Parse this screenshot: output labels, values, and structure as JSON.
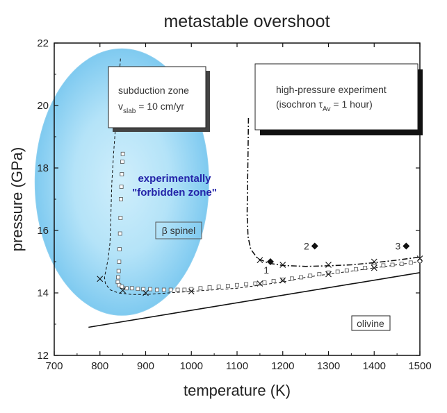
{
  "chart_data": {
    "type": "scatter",
    "title": "metastable overshoot",
    "xlabel": "temperature (K)",
    "ylabel": "pressure (GPa)",
    "xlim": [
      700,
      1500
    ],
    "ylim": [
      12,
      22
    ],
    "xticks": [
      700,
      800,
      900,
      1000,
      1100,
      1200,
      1300,
      1400,
      1500
    ],
    "yticks": [
      12,
      14,
      16,
      18,
      20,
      22
    ],
    "annotations": {
      "subduction_line1": "subduction zone",
      "subduction_v": "v",
      "subduction_sub": "slab",
      "subduction_rest": " = 10 cm/yr",
      "experiment_line1": "high-pressure experiment",
      "experiment_prefix": "(isochron τ",
      "experiment_sub": "Av",
      "experiment_rest": " = 1 hour)",
      "zone_line1": "experimentally",
      "zone_line2": "\"forbidden zone\"",
      "beta_spinel": "β spinel",
      "olivine": "olivine"
    },
    "series": [
      {
        "style": "solid",
        "x": [
          775,
          1500
        ],
        "y": [
          12.9,
          14.65
        ]
      },
      {
        "style": "dashed",
        "x": [
          845,
          840,
          835,
          830,
          826,
          824,
          822,
          818,
          814,
          810,
          812,
          822,
          840,
          870,
          900,
          950,
          1000,
          1050,
          1100,
          1150,
          1200,
          1250,
          1300,
          1350,
          1400,
          1450,
          1500
        ],
        "y": [
          21.5,
          20.5,
          19.5,
          18.5,
          17.5,
          16.5,
          15.6,
          15.1,
          14.8,
          14.5,
          14.3,
          14.1,
          14.0,
          13.95,
          13.95,
          14.0,
          14.05,
          14.1,
          14.15,
          14.25,
          14.35,
          14.5,
          14.6,
          14.7,
          14.8,
          14.9,
          15.0
        ]
      },
      {
        "style": "dash-dot",
        "x": [
          1125,
          1124,
          1123,
          1122,
          1124,
          1130,
          1145,
          1170,
          1200,
          1250,
          1300,
          1350,
          1400,
          1450,
          1500
        ],
        "y": [
          19.6,
          18.5,
          17.5,
          16.5,
          15.8,
          15.4,
          15.1,
          14.95,
          14.88,
          14.85,
          14.87,
          14.9,
          14.97,
          15.05,
          15.15
        ]
      },
      {
        "name": "squares",
        "marker": "square",
        "x": [
          850,
          849,
          848,
          847,
          846,
          845,
          844,
          843,
          842,
          841,
          840,
          839,
          842,
          848,
          858,
          870,
          883,
          895,
          910,
          925,
          940,
          955,
          970,
          985,
          1000,
          1020,
          1040,
          1060,
          1080,
          1100,
          1120,
          1140,
          1160,
          1180,
          1200,
          1220,
          1240,
          1260,
          1280,
          1300,
          1320,
          1340,
          1360,
          1380,
          1400,
          1420,
          1440,
          1460,
          1480,
          1500
        ],
        "y": [
          18.45,
          18.2,
          17.8,
          17.4,
          17.0,
          16.4,
          15.9,
          15.4,
          15.0,
          14.7,
          14.5,
          14.35,
          14.25,
          14.2,
          14.15,
          14.15,
          14.13,
          14.12,
          14.12,
          14.1,
          14.1,
          14.1,
          14.1,
          14.1,
          14.12,
          14.15,
          14.18,
          14.2,
          14.22,
          14.25,
          14.28,
          14.3,
          14.33,
          14.38,
          14.42,
          14.46,
          14.5,
          14.55,
          14.6,
          14.65,
          14.68,
          14.72,
          14.76,
          14.8,
          14.85,
          14.88,
          14.9,
          14.93,
          14.97,
          15.02
        ]
      },
      {
        "name": "crosses",
        "marker": "cross",
        "x": [
          800,
          850,
          900,
          1000,
          1150,
          1150,
          1200,
          1200,
          1300,
          1300,
          1400,
          1400,
          1500
        ],
        "y": [
          14.45,
          14.08,
          14.0,
          14.05,
          14.3,
          15.05,
          14.4,
          14.9,
          14.6,
          14.9,
          14.8,
          15.0,
          15.1
        ]
      },
      {
        "name": "diamonds",
        "marker": "diamond",
        "labels": [
          "1",
          "2",
          "3"
        ],
        "x": [
          1173,
          1270,
          1470
        ],
        "y": [
          15.0,
          15.5,
          15.5
        ]
      }
    ]
  }
}
